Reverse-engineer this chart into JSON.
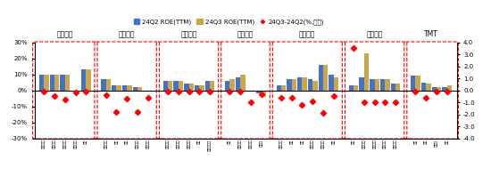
{
  "legend": [
    "24Q2 ROE(TTM)",
    "24Q3 ROE(TTM)",
    "24Q3-24Q2(%,右轴)"
  ],
  "bar_color_q2": "#4472C4",
  "bar_color_q3": "#C9A84C",
  "dot_color": "#FF0000",
  "groups": [
    {
      "name": "上游资源",
      "tickers": [
        "石油石化",
        "有色金属",
        "黑色金属",
        "畅剪行业",
        "语气"
      ],
      "q2": [
        10,
        10,
        10,
        0,
        13
      ],
      "q3": [
        10,
        10,
        10,
        0,
        13
      ],
      "diff": [
        -0.1,
        -0.5,
        -0.8,
        -0.2,
        -0.1
      ]
    },
    {
      "name": "中游材料",
      "tickers": [
        "基础化工",
        "钢铁",
        "建材",
        "防水材料",
        "轻工制造"
      ],
      "q2": [
        7,
        3,
        3,
        2,
        0
      ],
      "q3": [
        7,
        3,
        3,
        2,
        0
      ],
      "diff": [
        -0.4,
        -1.8,
        -0.7,
        -1.8,
        -0.6
      ]
    },
    {
      "name": "中游制造",
      "tickers": [
        "机械设备",
        "电力设备",
        "轻工制造",
        "电子",
        "计算机设备"
      ],
      "q2": [
        6,
        6,
        4,
        3,
        6
      ],
      "q3": [
        6,
        6,
        4,
        3,
        6
      ],
      "diff": [
        -0.1,
        -0.1,
        -0.1,
        -0.1,
        -0.1
      ]
    },
    {
      "name": "其他周期",
      "tickers": [
        "航运",
        "江河航运",
        "天气运输",
        "房地产"
      ],
      "q2": [
        6,
        8,
        0,
        -2
      ],
      "q3": [
        7,
        10,
        0,
        -4
      ],
      "diff": [
        -0.1,
        -0.1,
        -1.0,
        -0.3
      ]
    },
    {
      "name": "可选消费",
      "tickers": [
        "轻奉制造",
        "娱乐",
        "汽车",
        "纵屡服饰",
        "美容护理",
        "白酒"
      ],
      "q2": [
        3,
        7,
        8,
        7,
        16,
        10
      ],
      "q3": [
        3,
        7,
        8,
        6,
        16,
        8
      ],
      "diff": [
        -0.6,
        -0.6,
        -1.2,
        -0.9,
        -1.9,
        -0.5
      ]
    },
    {
      "name": "必需消费",
      "tickers": [
        "农业",
        "食品饮料",
        "超市零售",
        "药品生物",
        "医疗器械"
      ],
      "q2": [
        3,
        8,
        7,
        7,
        4
      ],
      "q3": [
        3,
        23,
        7,
        7,
        4
      ],
      "diff": [
        3.5,
        -1.0,
        -1.0,
        -1.0,
        -1.0
      ]
    },
    {
      "name": "TMT",
      "tickers": [
        "通信",
        "电子",
        "计算机",
        "传媒"
      ],
      "q2": [
        9,
        5,
        2,
        2
      ],
      "q3": [
        9,
        4,
        2,
        3
      ],
      "diff": [
        -0.1,
        -0.6,
        -0.1,
        -0.1
      ]
    }
  ],
  "ylim_left": [
    -30,
    30
  ],
  "ylim_right": [
    -4.0,
    4.0
  ],
  "yticks_left": [
    -30,
    -20,
    -10,
    0,
    10,
    20,
    30
  ],
  "yticks_right_labels": [
    "-4.0",
    "-3.0",
    "-2.0",
    "-1.0",
    "0.0",
    "1.0",
    "2.0",
    "3.0",
    "4.0"
  ],
  "yticks_right_vals": [
    -4.0,
    -3.0,
    -2.0,
    -1.0,
    0.0,
    1.0,
    2.0,
    3.0,
    4.0
  ],
  "box_color": "#FF0000"
}
